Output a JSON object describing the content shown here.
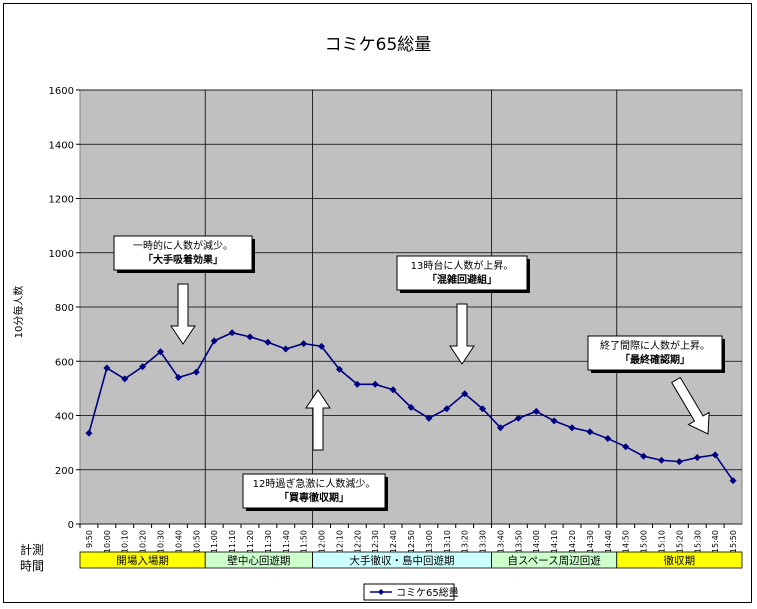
{
  "chart_data": {
    "type": "line",
    "title": "コミケ65総量",
    "ylabel": "10分毎人数",
    "xlabel": "",
    "ylim": [
      0,
      1600
    ],
    "yticks": [
      0,
      200,
      400,
      600,
      800,
      1000,
      1200,
      1400,
      1600
    ],
    "grid": true,
    "legend": "bottom",
    "categories": [
      "9:50",
      "10:00",
      "10:10",
      "10:20",
      "10:30",
      "10:40",
      "10:50",
      "11:00",
      "11:10",
      "11:20",
      "11:30",
      "11:40",
      "11:50",
      "12:00",
      "12:10",
      "12:20",
      "12:30",
      "12:40",
      "12:50",
      "13:00",
      "13:10",
      "13:20",
      "13:30",
      "13:40",
      "13:50",
      "14:00",
      "14:10",
      "14:20",
      "14:30",
      "14:40",
      "14:50",
      "15:00",
      "15:10",
      "15:20",
      "15:30",
      "15:40",
      "15:50"
    ],
    "series": [
      {
        "name": "コミケ65総量",
        "values": [
          335,
          575,
          535,
          580,
          635,
          540,
          560,
          675,
          705,
          690,
          670,
          645,
          665,
          655,
          570,
          515,
          515,
          495,
          430,
          390,
          425,
          480,
          425,
          355,
          390,
          415,
          380,
          355,
          340,
          315,
          285,
          250,
          235,
          230,
          245,
          255,
          160
        ]
      }
    ],
    "row_label": [
      "計測",
      "時間"
    ],
    "periods": [
      {
        "label": "開場入場期",
        "start": 0,
        "end": 7
      },
      {
        "label": "壁中心回遊期",
        "start": 7,
        "end": 13
      },
      {
        "label": "大手徹収・島中回遊期",
        "start": 13,
        "end": 23
      },
      {
        "label": "自スペース周辺回遊",
        "start": 23,
        "end": 30
      },
      {
        "label": "徹収期",
        "start": 30,
        "end": 37
      }
    ],
    "annotations": [
      {
        "lines": [
          "一時的に人数が減少。",
          "「大手吸着効果」"
        ],
        "anchor_index": 5
      },
      {
        "lines": [
          "12時過ぎ急激に人数減少。",
          "「買専徹収期」"
        ],
        "anchor_index": 13
      },
      {
        "lines": [
          "13時台に人数が上昇。",
          "「混雑回避組」"
        ],
        "anchor_index": 21
      },
      {
        "lines": [
          "終了間際に人数が上昇。",
          "「最終確認期」"
        ],
        "anchor_index": 35
      }
    ],
    "colors": {
      "line": "#000080",
      "plot_bg": "#c0c0c0",
      "period_yellow": "#ffff00",
      "period_green": "#ccffcc",
      "period_cyan": "#ccffff"
    }
  }
}
